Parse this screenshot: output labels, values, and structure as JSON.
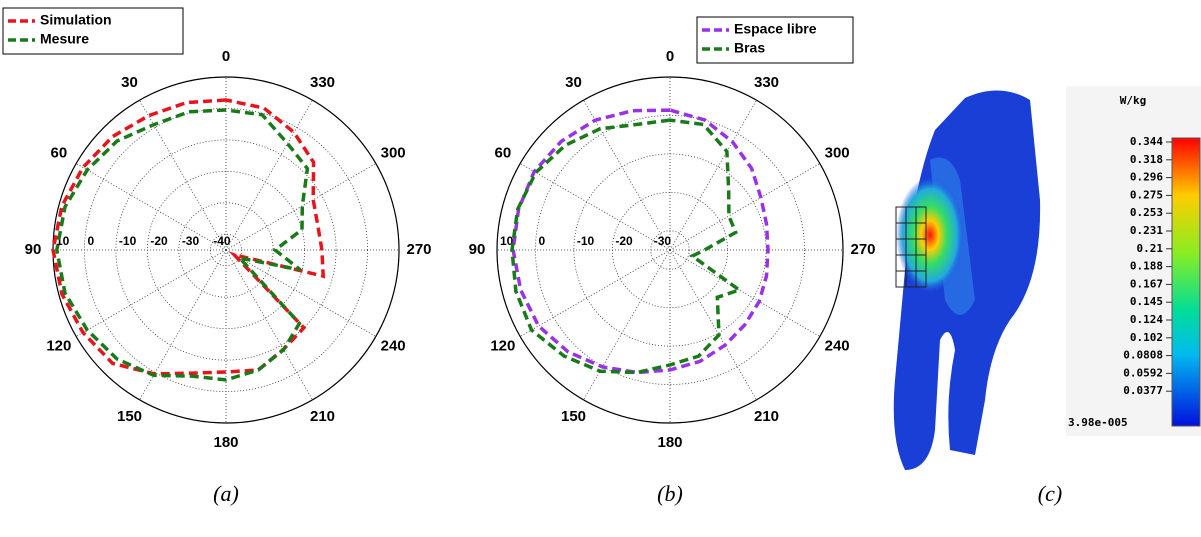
{
  "chart_data": [
    {
      "type": "polar",
      "theta": [
        0,
        15,
        30,
        45,
        60,
        75,
        90,
        105,
        120,
        135,
        150,
        165,
        180,
        195,
        210,
        225,
        240,
        255,
        270,
        285,
        300,
        315,
        330,
        345
      ],
      "series": [
        {
          "name": "Simulation",
          "color": "#e8141c",
          "values": [
            2.7,
            3.5,
            4.3,
            6,
            7.5,
            9,
            10,
            9,
            7.5,
            6,
            0.5,
            -4.5,
            -6.2,
            -5.5,
            -8.5,
            -10,
            -42,
            -13,
            -14.5,
            -14.8,
            -13,
            -5.6,
            -1.8,
            1.7
          ]
        },
        {
          "name": "Mesure",
          "color": "#1a7a1a",
          "values": [
            -0.5,
            0.5,
            1,
            4,
            5.9,
            8,
            8.8,
            8,
            5.9,
            4,
            1,
            -3.5,
            -3.7,
            -5.5,
            -8.4,
            -12,
            -40,
            -20.5,
            -29.4,
            -20,
            -17,
            -8.4,
            -5.9,
            -0.5
          ]
        }
      ],
      "rlim": [
        -45,
        10
      ],
      "rticks": [
        -40,
        -30,
        -20,
        -10,
        0,
        10
      ],
      "thetaticks": [
        0,
        30,
        60,
        90,
        120,
        150,
        180,
        210,
        240,
        270,
        300,
        330
      ],
      "grid": true,
      "legend": "top-left"
    },
    {
      "type": "polar",
      "theta": [
        0,
        15,
        30,
        45,
        60,
        75,
        90,
        105,
        120,
        135,
        150,
        165,
        180,
        195,
        210,
        225,
        240,
        255,
        270,
        285,
        300,
        315,
        330,
        345
      ],
      "series": [
        {
          "name": "Espace libre",
          "color": "#9932e6",
          "values": [
            1.4,
            2.5,
            4,
            5,
            5.8,
            5.8,
            5.8,
            5.2,
            4.5,
            2.5,
            0.1,
            -2,
            -3.8,
            -5,
            -6.4,
            -7.5,
            -8.2,
            -9,
            -9.5,
            -9,
            -7.7,
            -5,
            -2.5,
            0
          ]
        },
        {
          "name": "Bras",
          "color": "#1a7a1a",
          "values": [
            -1.2,
            -1.2,
            1.4,
            3.5,
            5.3,
            6,
            6.1,
            6.5,
            6.6,
            4,
            1.4,
            -2,
            -5.1,
            -6.4,
            -9.5,
            -17.6,
            -14.2,
            -29,
            -26,
            -17.3,
            -17.3,
            -13.4,
            -5.4,
            -1.2
          ]
        }
      ],
      "rlim": [
        -35,
        10
      ],
      "rticks": [
        -30,
        -20,
        -10,
        0,
        10
      ],
      "thetaticks": [
        0,
        30,
        60,
        90,
        120,
        150,
        180,
        210,
        240,
        270,
        300,
        330
      ],
      "grid": true,
      "legend": "top-right"
    },
    {
      "type": "colorbar",
      "unit": "W/kg",
      "ticks": [
        0.344,
        0.318,
        0.296,
        0.275,
        0.253,
        0.231,
        0.21,
        0.188,
        0.167,
        0.145,
        0.124,
        0.102,
        0.0808,
        0.0592,
        0.0377,
        {
          "value": 3.98e-05,
          "label": "3.98e-005"
        }
      ]
    }
  ],
  "panel_labels": [
    "(a)",
    "(b)",
    "(c)"
  ]
}
